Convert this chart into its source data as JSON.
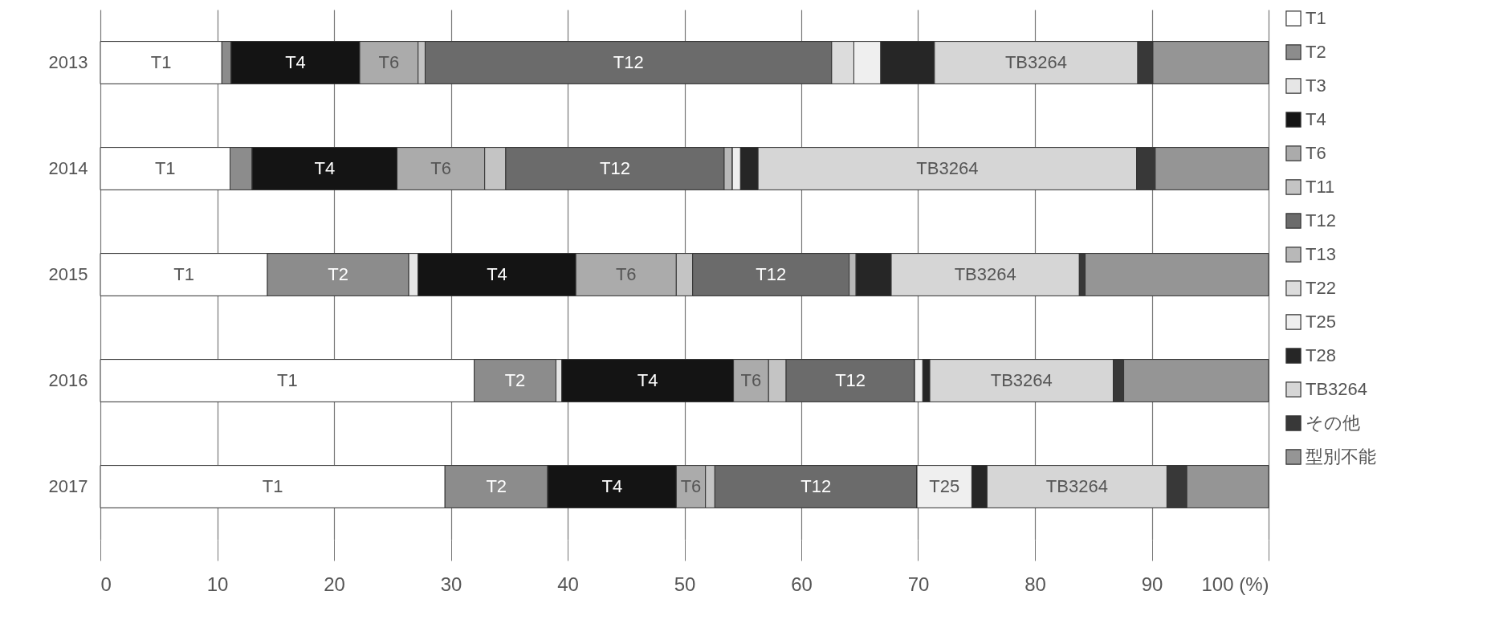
{
  "chart_data": {
    "type": "bar",
    "orientation": "horizontal",
    "stacked": true,
    "categories": [
      "2013",
      "2014",
      "2015",
      "2016",
      "2017"
    ],
    "series": [
      {
        "name": "T1",
        "color": "#ffffff",
        "values": [
          10.4,
          11.1,
          14.3,
          32.0,
          29.5
        ],
        "value_labels": [
          "T1",
          "T1",
          "T1",
          "T1",
          "T1"
        ]
      },
      {
        "name": "T2",
        "color": "#8c8c8c",
        "values": [
          0.8,
          1.9,
          12.1,
          7.0,
          8.8
        ],
        "value_labels": [
          null,
          null,
          "T2",
          "T2",
          "T2"
        ]
      },
      {
        "name": "T3",
        "color": "#e6e6e6",
        "values": [
          0,
          0,
          0.8,
          0.5,
          0
        ]
      },
      {
        "name": "T4",
        "color": "#141414",
        "values": [
          11.0,
          12.4,
          13.5,
          14.7,
          11.0
        ],
        "value_labels": [
          "T4",
          "T4",
          "T4",
          "T4",
          "T4"
        ]
      },
      {
        "name": "T6",
        "color": "#ababab",
        "values": [
          5.0,
          7.5,
          8.6,
          3.0,
          2.5
        ],
        "value_labels": [
          "T6",
          "T6",
          "T6",
          "T6",
          "T6"
        ]
      },
      {
        "name": "T11",
        "color": "#c4c4c4",
        "values": [
          0.6,
          1.8,
          1.4,
          1.5,
          0.8
        ]
      },
      {
        "name": "T12",
        "color": "#6b6b6b",
        "values": [
          34.8,
          18.7,
          13.4,
          11.0,
          17.3
        ],
        "value_labels": [
          "T12",
          "T12",
          "T12",
          "T12",
          "T12"
        ]
      },
      {
        "name": "T13",
        "color": "#b8b8b8",
        "values": [
          0,
          0.7,
          0.6,
          0,
          0
        ]
      },
      {
        "name": "T22",
        "color": "#dcdcdc",
        "values": [
          1.9,
          0,
          0,
          0,
          0
        ]
      },
      {
        "name": "T25",
        "color": "#efefef",
        "values": [
          2.3,
          0.7,
          0,
          0.7,
          4.7
        ],
        "value_labels": [
          null,
          null,
          null,
          null,
          "T25"
        ]
      },
      {
        "name": "T28",
        "color": "#262626",
        "values": [
          4.6,
          1.5,
          3.0,
          0.6,
          1.3
        ]
      },
      {
        "name": "TB3264",
        "color": "#d6d6d6",
        "values": [
          17.4,
          32.4,
          16.1,
          15.7,
          15.4
        ],
        "value_labels": [
          "TB3264",
          "TB3264",
          "TB3264",
          "TB3264",
          "TB3264"
        ]
      },
      {
        "name": "その他",
        "color": "#383838",
        "values": [
          1.3,
          1.6,
          0.5,
          0.9,
          1.7
        ]
      },
      {
        "name": "型別不能",
        "color": "#959595",
        "values": [
          9.9,
          9.7,
          15.7,
          12.4,
          7.0
        ]
      }
    ],
    "xlim": [
      0,
      100
    ],
    "xticks": [
      0,
      10,
      20,
      30,
      40,
      50,
      60,
      70,
      80,
      90,
      {
        "value": 100,
        "label": "100 (%)"
      }
    ],
    "grid": true,
    "legend": "right"
  }
}
